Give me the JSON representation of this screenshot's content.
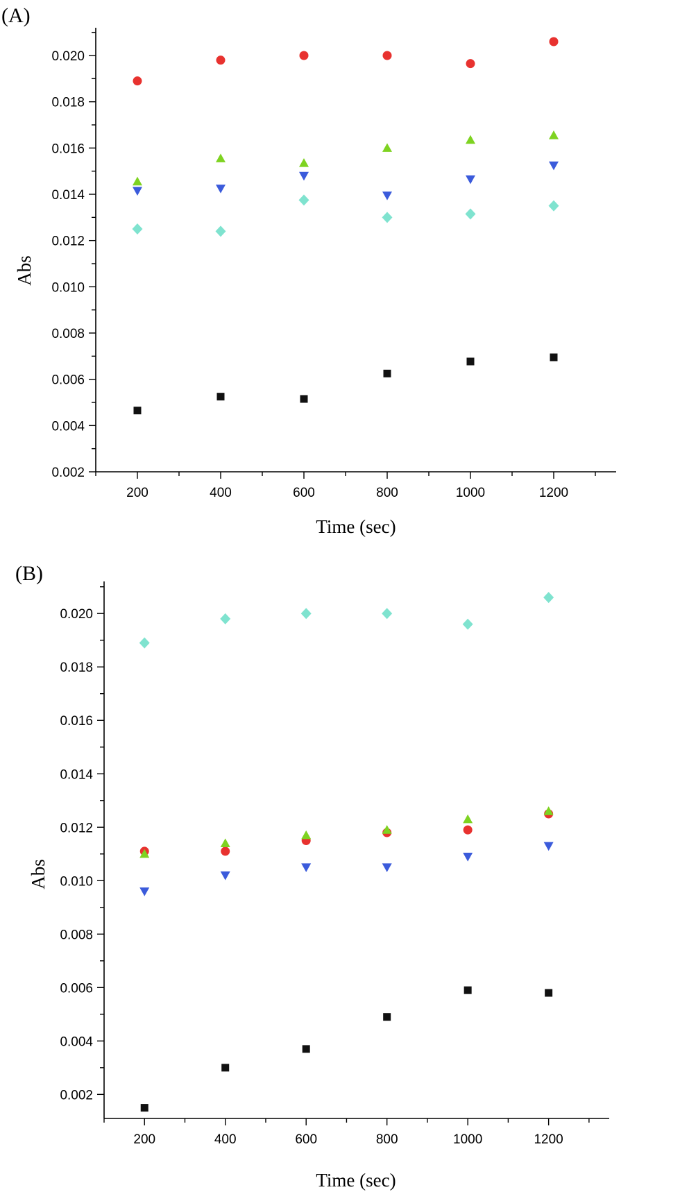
{
  "chart_data": [
    {
      "panel_label": "(A)",
      "type": "scatter",
      "xlabel": "Time (sec)",
      "ylabel": "Abs",
      "xlim": [
        100,
        1350
      ],
      "ylim": [
        0.002,
        0.0212
      ],
      "x_ticks": [
        200,
        400,
        600,
        800,
        1000,
        1200
      ],
      "y_ticks": [
        0.002,
        0.004,
        0.006,
        0.008,
        0.01,
        0.012,
        0.014,
        0.016,
        0.018,
        0.02
      ],
      "y_tick_labels": [
        "0.002",
        "0.004",
        "0.006",
        "0.008",
        "0.010",
        "0.012",
        "0.014",
        "0.016",
        "0.018",
        "0.020"
      ],
      "grid": false,
      "series": [
        {
          "marker": "square",
          "color": "#111111",
          "x": [
            200,
            400,
            600,
            800,
            1000,
            1200
          ],
          "y": [
            0.00465,
            0.00525,
            0.00515,
            0.00625,
            0.00677,
            0.00695
          ]
        },
        {
          "marker": "circle",
          "color": "#e8322f",
          "x": [
            200,
            400,
            600,
            800,
            1000,
            1200
          ],
          "y": [
            0.0189,
            0.0198,
            0.02,
            0.02,
            0.01965,
            0.0206
          ]
        },
        {
          "marker": "triangle-up",
          "color": "#7ed321",
          "x": [
            200,
            400,
            600,
            800,
            1000,
            1200
          ],
          "y": [
            0.01455,
            0.01555,
            0.01535,
            0.016,
            0.01635,
            0.01655
          ]
        },
        {
          "marker": "triangle-down",
          "color": "#3b5bdb",
          "x": [
            200,
            400,
            600,
            800,
            1000,
            1200
          ],
          "y": [
            0.01415,
            0.01425,
            0.0148,
            0.01395,
            0.01465,
            0.01525
          ]
        },
        {
          "marker": "diamond",
          "color": "#7fe3cf",
          "x": [
            200,
            400,
            600,
            800,
            1000,
            1200
          ],
          "y": [
            0.0125,
            0.0124,
            0.01375,
            0.013,
            0.01315,
            0.0135
          ]
        }
      ]
    },
    {
      "panel_label": "(B)",
      "type": "scatter",
      "xlabel": "Time (sec)",
      "ylabel": "Abs",
      "xlim": [
        100,
        1350
      ],
      "ylim": [
        0.0011,
        0.0212
      ],
      "x_ticks": [
        200,
        400,
        600,
        800,
        1000,
        1200
      ],
      "y_ticks": [
        0.002,
        0.004,
        0.006,
        0.008,
        0.01,
        0.012,
        0.014,
        0.016,
        0.018,
        0.02
      ],
      "y_tick_labels": [
        "0.002",
        "0.004",
        "0.006",
        "0.008",
        "0.010",
        "0.012",
        "0.014",
        "0.016",
        "0.018",
        "0.020"
      ],
      "grid": false,
      "series": [
        {
          "marker": "square",
          "color": "#111111",
          "x": [
            200,
            400,
            600,
            800,
            1000,
            1200
          ],
          "y": [
            0.0015,
            0.003,
            0.0037,
            0.0049,
            0.0059,
            0.0058
          ]
        },
        {
          "marker": "circle",
          "color": "#e8322f",
          "x": [
            200,
            400,
            600,
            800,
            1000,
            1200
          ],
          "y": [
            0.0111,
            0.0111,
            0.0115,
            0.0118,
            0.0119,
            0.0125
          ]
        },
        {
          "marker": "triangle-up",
          "color": "#7ed321",
          "x": [
            200,
            400,
            600,
            800,
            1000,
            1200
          ],
          "y": [
            0.011,
            0.0114,
            0.0117,
            0.0119,
            0.0123,
            0.0126
          ]
        },
        {
          "marker": "triangle-down",
          "color": "#3b5bdb",
          "x": [
            200,
            400,
            600,
            800,
            1000,
            1200
          ],
          "y": [
            0.0096,
            0.0102,
            0.0105,
            0.0105,
            0.0109,
            0.0113
          ]
        },
        {
          "marker": "diamond",
          "color": "#7fe3cf",
          "x": [
            200,
            400,
            600,
            800,
            1000,
            1200
          ],
          "y": [
            0.0189,
            0.0198,
            0.02,
            0.02,
            0.0196,
            0.0206
          ]
        }
      ]
    }
  ]
}
